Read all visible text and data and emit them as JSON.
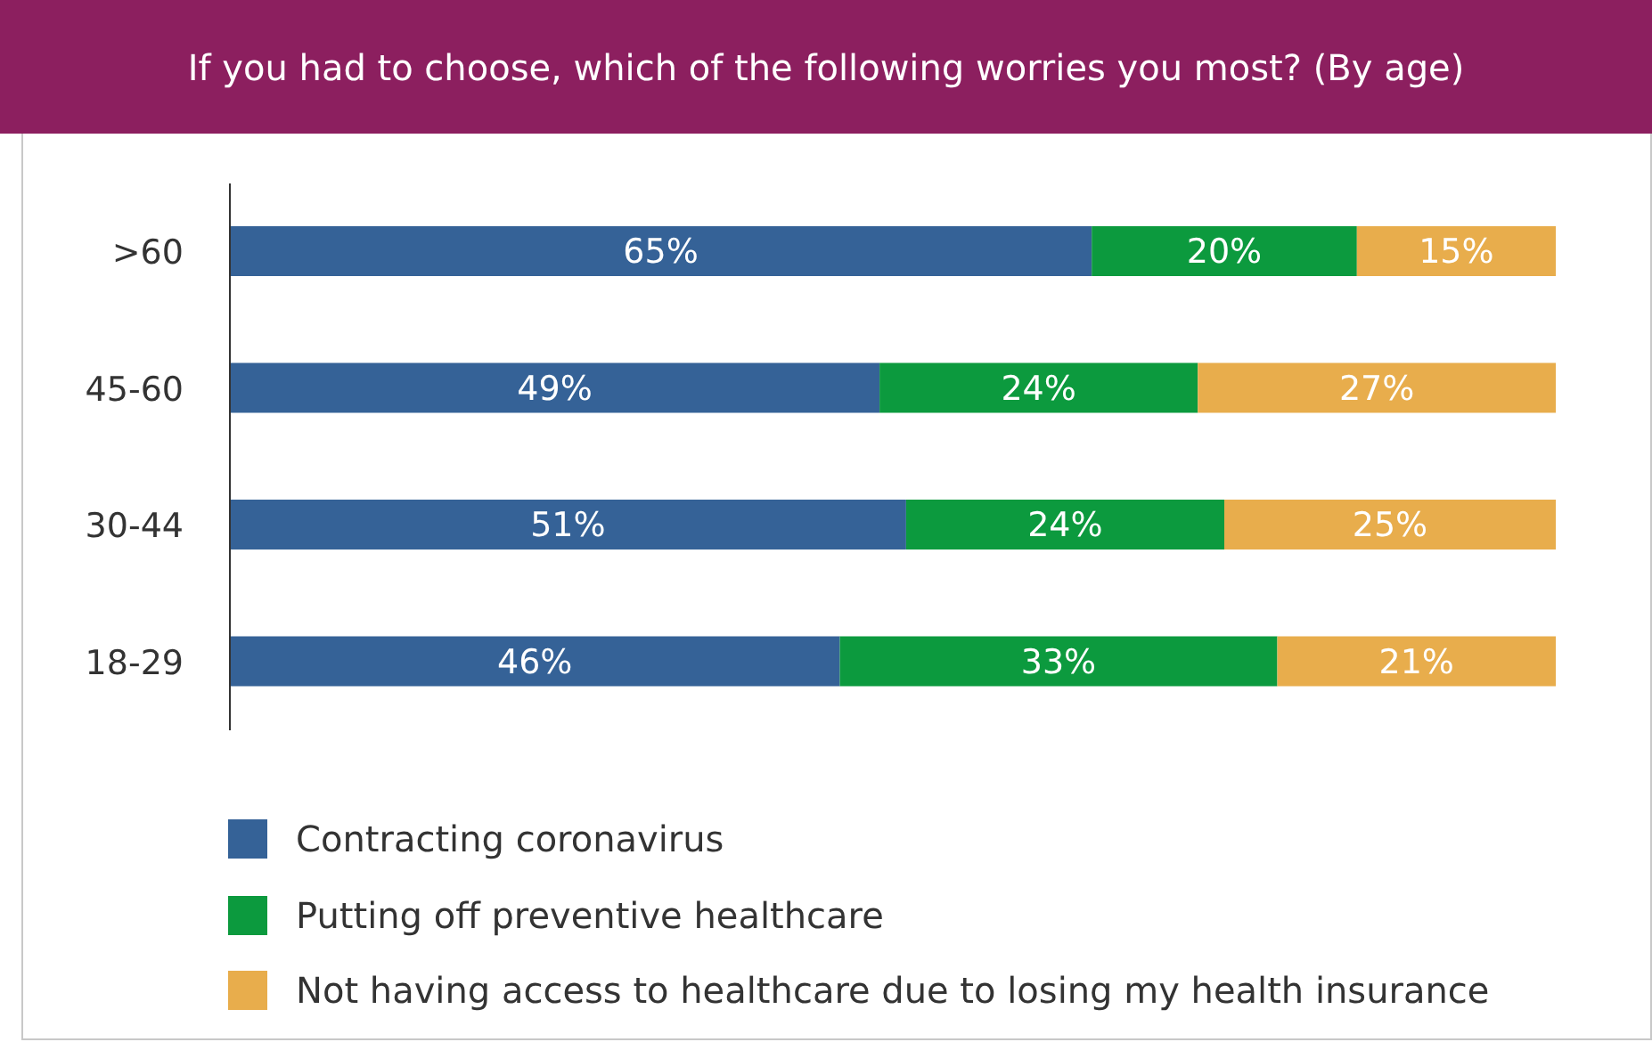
{
  "chart_data": {
    "type": "bar",
    "orientation": "horizontal",
    "stacked": true,
    "title": "If you had to choose, which of the following worries you most? (By age)",
    "categories": [
      ">60",
      "45-60",
      "30-44",
      "18-29"
    ],
    "series": [
      {
        "name": "Contracting coronavirus",
        "color": "#356297",
        "values": [
          65,
          49,
          51,
          46
        ],
        "value_labels": [
          "65%",
          "49%",
          "51%",
          "46%"
        ]
      },
      {
        "name": "Putting off preventive healthcare",
        "color": "#0c9a3e",
        "values": [
          20,
          24,
          24,
          33
        ],
        "value_labels": [
          "20%",
          "24%",
          "24%",
          "33%"
        ]
      },
      {
        "name": "Not having access to healthcare due to losing my health insurance",
        "color": "#e8ad4c",
        "values": [
          15,
          27,
          25,
          21
        ],
        "value_labels": [
          "15%",
          "27%",
          "25%",
          "21%"
        ]
      }
    ],
    "xlim": [
      0,
      100
    ],
    "tick_labels": "y",
    "legend": "bottom",
    "grid": false
  }
}
